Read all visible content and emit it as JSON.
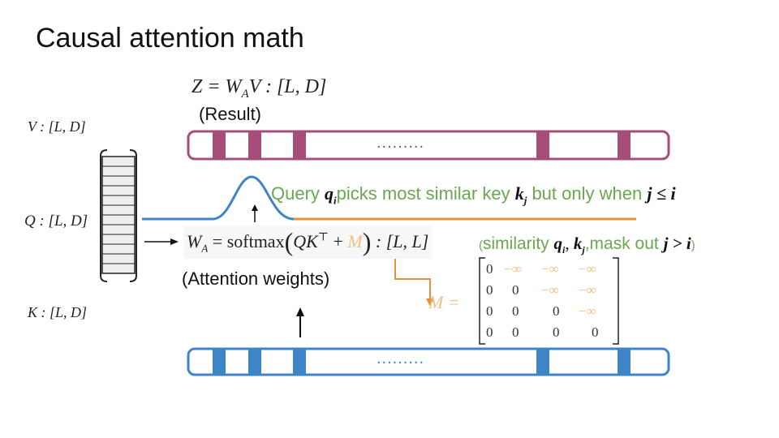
{
  "title": "Causal attention math",
  "result_eq": "Z = W",
  "result_eq_sub": "A",
  "result_eq_tail": "V : [L, D]",
  "result_label": "(Result)",
  "v_label": "V : [L, D]",
  "q_label": "Q : [L, D]",
  "k_label": "K : [L, D]",
  "query_text": {
    "prefix": "Query ",
    "qi": "q",
    "qi_sub": "i",
    "mid": "picks most similar key ",
    "kj": "k",
    "kj_sub": "j",
    "tail": " but only when ",
    "cond": "j ≤ i"
  },
  "weights_eq": {
    "lhs": "W",
    "lhs_sub": "A",
    "eq": " = softmax",
    "open": "(",
    "body": "QK",
    "sup": "⊤",
    "plus": " + ",
    "m": "M",
    "close": ")",
    "tail": " : [L, L]"
  },
  "similarity_text": {
    "open": "(",
    "word": "similarity ",
    "qi": "q",
    "qi_sub": "i",
    "comma": ", ",
    "kj": "k",
    "kj_sub": "j",
    "mask": ",mask out ",
    "cond": "j > i",
    "close": ")"
  },
  "attention_label": "(Attention weights)",
  "mask_eq": "M =",
  "mask_matrix": [
    [
      "0",
      "−∞",
      "−∞",
      "−∞"
    ],
    [
      "0",
      "0",
      "−∞",
      "−∞"
    ],
    [
      "0",
      "0",
      "0",
      "−∞"
    ],
    [
      "0",
      "0",
      "0",
      "0"
    ]
  ],
  "ellipsis": ".........",
  "colors": {
    "result_bar": "#a64d79",
    "key_bar": "#3d85c6",
    "green": "#6aa84f",
    "orange": "#e69138"
  }
}
